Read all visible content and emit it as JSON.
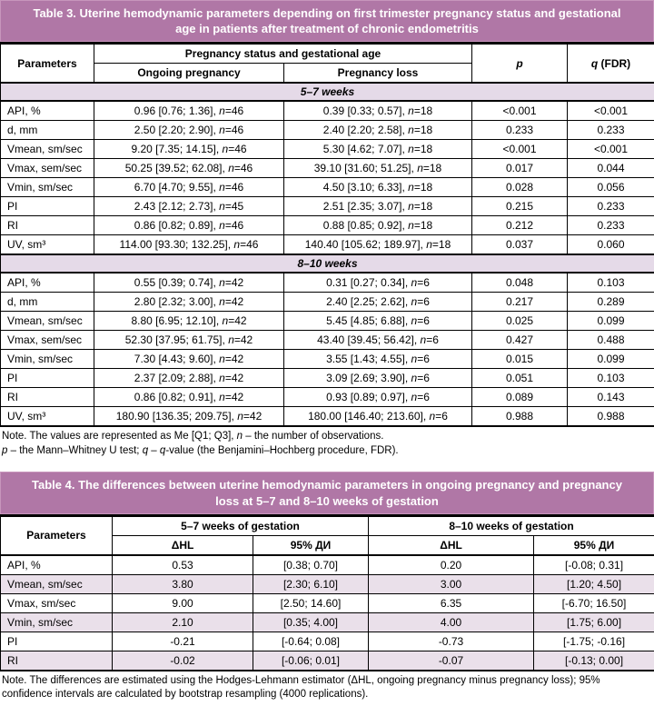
{
  "colors": {
    "title_bar": "#b077a6",
    "section_band": "#e5dae8",
    "shaded_row": "#eae0ea",
    "border": "#000000"
  },
  "table3": {
    "title": "Table 3. Uterine hemodynamic parameters depending on first trimester pregnancy status and gestational age in patients after treatment of chronic endometritis",
    "header": {
      "parameters": "Parameters",
      "group": "Pregnancy status and gestational age",
      "col_ongoing": "Ongoing pregnancy",
      "col_loss": "Pregnancy loss",
      "col_p": "p",
      "col_q_italic": "q",
      "col_q_suffix": "(FDR)"
    },
    "sections": [
      {
        "label": "5–7 weeks",
        "rows": [
          [
            "API, %",
            "0.96 [0.76; 1.36], n=46",
            "0.39 [0.33; 0.57], n=18",
            "<0.001",
            "<0.001"
          ],
          [
            "d, mm",
            "2.50 [2.20; 2.90], n=46",
            "2.40 [2.20; 2.58], n=18",
            "0.233",
            "0.233"
          ],
          [
            "Vmean, sm/sec",
            "9.20 [7.35; 14.15], n=46",
            "5.30 [4.62; 7.07], n=18",
            "<0.001",
            "<0.001"
          ],
          [
            "Vmax, sem/sec",
            "50.25 [39.52; 62.08], n=46",
            "39.10 [31.60; 51.25], n=18",
            "0.017",
            "0.044"
          ],
          [
            "Vmin, sm/sec",
            "6.70 [4.70; 9.55], n=46",
            "4.50 [3.10; 6.33], n=18",
            "0.028",
            "0.056"
          ],
          [
            "PI",
            "2.43 [2.12; 2.73], n=45",
            "2.51 [2.35; 3.07], n=18",
            "0.215",
            "0.233"
          ],
          [
            "RI",
            "0.86 [0.82; 0.89], n=46",
            "0.88 [0.85; 0.92], n=18",
            "0.212",
            "0.233"
          ],
          [
            "UV, sm³",
            "114.00 [93.30; 132.25], n=46",
            "140.40 [105.62; 189.97], n=18",
            "0.037",
            "0.060"
          ]
        ]
      },
      {
        "label": "8–10 weeks",
        "rows": [
          [
            "API, %",
            "0.55 [0.39; 0.74], n=42",
            "0.31 [0.27; 0.34], n=6",
            "0.048",
            "0.103"
          ],
          [
            "d, mm",
            "2.80 [2.32; 3.00], n=42",
            "2.40 [2.25; 2.62], n=6",
            "0.217",
            "0.289"
          ],
          [
            "Vmean, sm/sec",
            "8.80 [6.95; 12.10], n=42",
            "5.45 [4.85; 6.88], n=6",
            "0.025",
            "0.099"
          ],
          [
            "Vmax, sem/sec",
            "52.30 [37.95; 61.75], n=42",
            "43.40 [39.45; 56.42], n=6",
            "0.427",
            "0.488"
          ],
          [
            "Vmin, sm/sec",
            "7.30 [4.43; 9.60], n=42",
            "3.55 [1.43; 4.55], n=6",
            "0.015",
            "0.099"
          ],
          [
            "PI",
            "2.37 [2.09; 2.88], n=42",
            "3.09 [2.69; 3.90], n=6",
            "0.051",
            "0.103"
          ],
          [
            "RI",
            "0.86 [0.82; 0.91], n=42",
            "0.93 [0.89; 0.97], n=6",
            "0.089",
            "0.143"
          ],
          [
            "UV, sm³",
            "180.90 [136.35; 209.75], n=42",
            "180.00 [146.40; 213.60], n=6",
            "0.988",
            "0.988"
          ]
        ]
      }
    ],
    "note_lines": [
      "Note. The values are represented as Me [Q1; Q3], n – the number of observations.",
      "p – the Mann–Whitney U test; q – q-value (the Benjamini–Hochberg procedure, FDR)."
    ]
  },
  "table4": {
    "title": "Table 4. The differences between uterine hemodynamic parameters in ongoing pregnancy and pregnancy loss at 5–7 and 8–10 weeks of gestation",
    "header": {
      "parameters": "Parameters",
      "group1": "5–7 weeks of gestation",
      "group2": "8–10 weeks of gestation",
      "col_dhl": "ΔHL",
      "col_ci": "95% ДИ"
    },
    "rows": [
      [
        "API, %",
        "0.53",
        "[0.38; 0.70]",
        "0.20",
        "[-0.08; 0.31]"
      ],
      [
        "Vmean, sm/sec",
        "3.80",
        "[2.30; 6.10]",
        "3.00",
        "[1.20; 4.50]"
      ],
      [
        "Vmax, sm/sec",
        "9.00",
        "[2.50; 14.60]",
        "6.35",
        "[-6.70; 16.50]"
      ],
      [
        "Vmin, sm/sec",
        "2.10",
        "[0.35; 4.00]",
        "4.00",
        "[1.75; 6.00]"
      ],
      [
        "PI",
        "-0.21",
        "[-0.64; 0.08]",
        "-0.73",
        "[-1.75; -0.16]"
      ],
      [
        "RI",
        "-0.02",
        "[-0.06; 0.01]",
        "-0.07",
        "[-0.13; 0.00]"
      ]
    ],
    "note_lines": [
      "Note. The differences are estimated using the Hodges-Lehmann estimator (ΔHL, ongoing pregnancy minus pregnancy loss); 95% confidence intervals are calculated by bootstrap resampling (4000 replications)."
    ]
  }
}
